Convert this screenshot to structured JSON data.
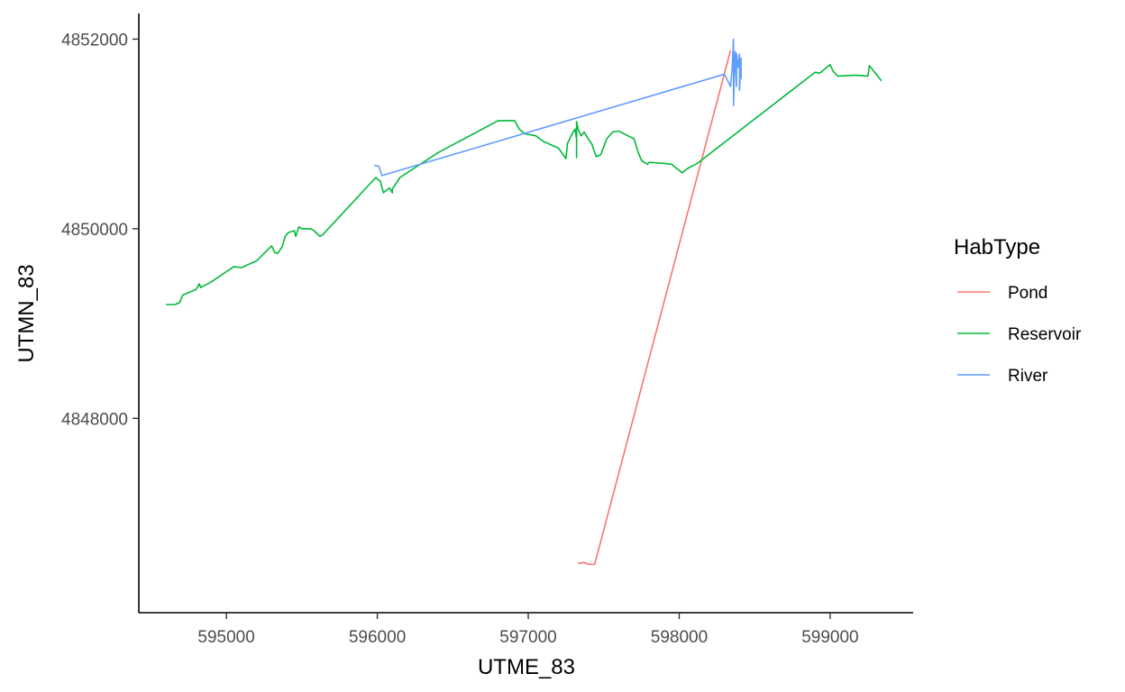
{
  "chart_data": {
    "type": "line",
    "xlabel": "UTME_83",
    "ylabel": "UTMN_83",
    "xlim": [
      594420,
      599550
    ],
    "ylim": [
      4845950,
      4852270
    ],
    "xticks": [
      595000,
      596000,
      597000,
      598000,
      599000
    ],
    "xtick_labels": [
      "595000",
      "596000",
      "597000",
      "598000",
      "599000"
    ],
    "yticks": [
      4848000,
      4850000,
      4852000
    ],
    "ytick_labels": [
      "4848000",
      "4850000",
      "4852000"
    ],
    "grid": false,
    "legend": {
      "title": "HabType",
      "position": "right"
    },
    "series": [
      {
        "name": "Pond",
        "color": "#F8766D",
        "points": [
          [
            597330,
            4846470
          ],
          [
            597370,
            4846480
          ],
          [
            597400,
            4846460
          ],
          [
            597440,
            4846460
          ],
          [
            598340,
            4851880
          ]
        ]
      },
      {
        "name": "Reservoir",
        "color": "#00BA38",
        "points": [
          [
            594600,
            4849200
          ],
          [
            594660,
            4849200
          ],
          [
            594690,
            4849220
          ],
          [
            594710,
            4849300
          ],
          [
            594800,
            4849360
          ],
          [
            594820,
            4849420
          ],
          [
            594830,
            4849380
          ],
          [
            594900,
            4849440
          ],
          [
            595050,
            4849600
          ],
          [
            595100,
            4849590
          ],
          [
            595170,
            4849640
          ],
          [
            595200,
            4849660
          ],
          [
            595300,
            4849820
          ],
          [
            595320,
            4849750
          ],
          [
            595340,
            4849740
          ],
          [
            595370,
            4849810
          ],
          [
            595390,
            4849920
          ],
          [
            595410,
            4849960
          ],
          [
            595450,
            4849980
          ],
          [
            595460,
            4849920
          ],
          [
            595480,
            4850020
          ],
          [
            595500,
            4850000
          ],
          [
            595560,
            4850000
          ],
          [
            595580,
            4849980
          ],
          [
            595620,
            4849920
          ],
          [
            595640,
            4849940
          ],
          [
            595990,
            4850540
          ],
          [
            596020,
            4850500
          ],
          [
            596040,
            4850380
          ],
          [
            596080,
            4850430
          ],
          [
            596100,
            4850380
          ],
          [
            596100,
            4850420
          ],
          [
            596150,
            4850540
          ],
          [
            596400,
            4850800
          ],
          [
            596800,
            4851140
          ],
          [
            596910,
            4851140
          ],
          [
            596940,
            4851050
          ],
          [
            596980,
            4851000
          ],
          [
            597050,
            4850980
          ],
          [
            597100,
            4850920
          ],
          [
            597200,
            4850850
          ],
          [
            597250,
            4850740
          ],
          [
            597260,
            4850900
          ],
          [
            597290,
            4851000
          ],
          [
            597310,
            4851050
          ],
          [
            597320,
            4850950
          ],
          [
            597320,
            4850750
          ],
          [
            597320,
            4851130
          ],
          [
            597330,
            4851050
          ],
          [
            597350,
            4850980
          ],
          [
            597370,
            4851020
          ],
          [
            597400,
            4850940
          ],
          [
            597420,
            4850900
          ],
          [
            597450,
            4850760
          ],
          [
            597480,
            4850780
          ],
          [
            597520,
            4850950
          ],
          [
            597560,
            4851020
          ],
          [
            597600,
            4851030
          ],
          [
            597660,
            4850980
          ],
          [
            597700,
            4850950
          ],
          [
            597730,
            4850800
          ],
          [
            597750,
            4850720
          ],
          [
            597780,
            4850690
          ],
          [
            597790,
            4850680
          ],
          [
            597800,
            4850700
          ],
          [
            597900,
            4850690
          ],
          [
            597950,
            4850680
          ],
          [
            597980,
            4850640
          ],
          [
            598020,
            4850590
          ],
          [
            598060,
            4850640
          ],
          [
            598120,
            4850690
          ],
          [
            598900,
            4851650
          ],
          [
            598930,
            4851640
          ],
          [
            599000,
            4851730
          ],
          [
            599020,
            4851660
          ],
          [
            599050,
            4851610
          ],
          [
            599170,
            4851620
          ],
          [
            599250,
            4851610
          ],
          [
            599260,
            4851720
          ],
          [
            599300,
            4851640
          ],
          [
            599340,
            4851560
          ]
        ]
      },
      {
        "name": "River",
        "color": "#619CFF",
        "points": [
          [
            595980,
            4850670
          ],
          [
            596010,
            4850660
          ],
          [
            596030,
            4850560
          ],
          [
            598300,
            4851630
          ],
          [
            598340,
            4851500
          ],
          [
            598350,
            4851680
          ],
          [
            598360,
            4852000
          ],
          [
            598360,
            4851300
          ],
          [
            598370,
            4851870
          ],
          [
            598380,
            4851500
          ],
          [
            598380,
            4851850
          ],
          [
            598390,
            4851700
          ],
          [
            598400,
            4851840
          ],
          [
            598400,
            4851460
          ],
          [
            598410,
            4851800
          ],
          [
            598410,
            4851580
          ]
        ]
      }
    ]
  }
}
